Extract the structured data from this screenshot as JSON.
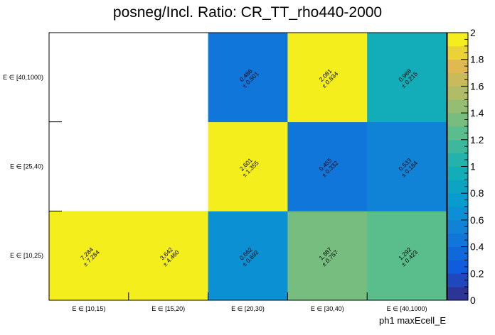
{
  "chart_data": {
    "type": "heatmap",
    "title": "posneg/Incl. Ratio: CR_TT_rho440-2000",
    "xlabel": "ph1 maxEcell_E",
    "ylabel": "",
    "x_categories": [
      "E ∈ [10,15)",
      "E ∈ [15,20)",
      "E ∈ [20,30)",
      "E ∈ [30,40)",
      "E ∈ [40,1000)"
    ],
    "y_categories": [
      "E ∈ [10,25)",
      "E ∈ [25,40)",
      "E ∈ [40,1000)"
    ],
    "zlim": [
      0,
      2
    ],
    "colorbar_ticks": [
      "0",
      "0.2",
      "0.4",
      "0.6",
      "0.8",
      "1",
      "1.2",
      "1.4",
      "1.6",
      "1.8",
      "2"
    ],
    "colorscale": "Parula",
    "cells": [
      {
        "x": 0,
        "y": 0,
        "value": 7.284,
        "error": 7.284,
        "label": "7.284",
        "err_label": "± 7.284"
      },
      {
        "x": 1,
        "y": 0,
        "value": 3.642,
        "error": 4.46,
        "label": "3.642",
        "err_label": "± 4.460"
      },
      {
        "x": 2,
        "y": 0,
        "value": 0.662,
        "error": 0.692,
        "label": "0.662",
        "err_label": "± 0.692"
      },
      {
        "x": 3,
        "y": 0,
        "value": 1.387,
        "error": 0.757,
        "label": "1.387",
        "err_label": "± 0.757"
      },
      {
        "x": 4,
        "y": 0,
        "value": 1.292,
        "error": 0.423,
        "label": "1.292",
        "err_label": "± 0.423"
      },
      {
        "x": 2,
        "y": 1,
        "value": 2.601,
        "error": 1.355,
        "label": "2.601",
        "err_label": "± 1.355"
      },
      {
        "x": 3,
        "y": 1,
        "value": 0.455,
        "error": 0.332,
        "label": "0.455",
        "err_label": "± 0.332"
      },
      {
        "x": 4,
        "y": 1,
        "value": 0.533,
        "error": 0.184,
        "label": "0.533",
        "err_label": "± 0.184"
      },
      {
        "x": 2,
        "y": 2,
        "value": 0.486,
        "error": 0.501,
        "label": "0.486",
        "err_label": "± 0.501"
      },
      {
        "x": 3,
        "y": 2,
        "value": 2.081,
        "error": 0.834,
        "label": "2.081",
        "err_label": "± 0.834"
      },
      {
        "x": 4,
        "y": 2,
        "value": 0.968,
        "error": 0.215,
        "label": "0.968",
        "err_label": "± 0.215"
      }
    ]
  }
}
